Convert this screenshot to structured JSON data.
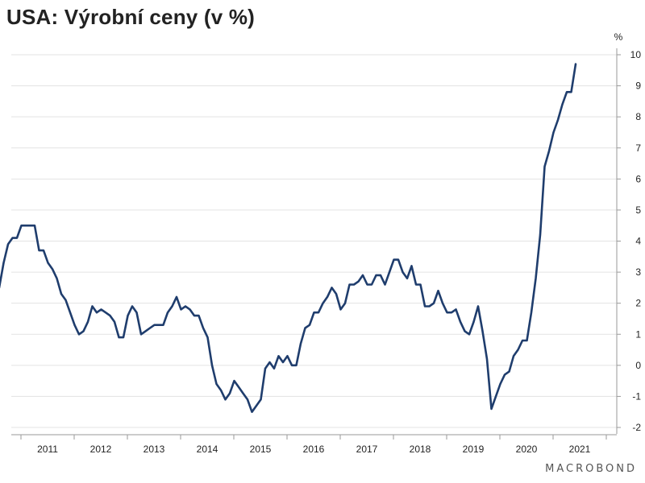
{
  "title": "USA: Výrobní ceny (v %)",
  "brand": "MACROBOND",
  "chart_data": {
    "type": "line",
    "unit": "%",
    "ylim": [
      -2,
      10
    ],
    "yticks": [
      -2,
      -1,
      0,
      1,
      2,
      3,
      4,
      5,
      6,
      7,
      8,
      9,
      10
    ],
    "xticks": [
      "2011",
      "2012",
      "2013",
      "2014",
      "2015",
      "2016",
      "2017",
      "2018",
      "2019",
      "2020",
      "2021"
    ],
    "grid": true,
    "color": "#1f3d6d",
    "series": [
      {
        "start": "2010-06",
        "values": [
          2.6,
          2.8,
          2.5,
          3.3,
          3.9,
          4.1,
          4.1,
          4.5,
          4.5,
          4.5,
          4.5,
          3.7,
          3.7,
          3.3,
          3.1,
          2.8,
          2.3,
          2.1,
          1.7,
          1.3,
          1.0,
          1.1,
          1.4,
          1.9,
          1.7,
          1.8,
          1.7,
          1.6,
          1.4,
          0.9,
          0.9,
          1.6,
          1.9,
          1.7,
          1.0,
          1.1,
          1.2,
          1.3,
          1.3,
          1.3,
          1.7,
          1.9,
          2.2,
          1.8,
          1.9,
          1.8,
          1.6,
          1.6,
          1.2,
          0.9,
          0.0,
          -0.6,
          -0.8,
          -1.1,
          -0.9,
          -0.5,
          -0.7,
          -0.9,
          -1.1,
          -1.5,
          -1.3,
          -1.1,
          -0.1,
          0.1,
          -0.1,
          0.3,
          0.1,
          0.3,
          0.0,
          0.0,
          0.7,
          1.2,
          1.3,
          1.7,
          1.7,
          2.0,
          2.2,
          2.5,
          2.3,
          1.8,
          2.0,
          2.6,
          2.6,
          2.7,
          2.9,
          2.6,
          2.6,
          2.9,
          2.9,
          2.6,
          3.0,
          3.4,
          3.4,
          3.0,
          2.8,
          3.2,
          2.6,
          2.6,
          1.9,
          1.9,
          2.0,
          2.4,
          2.0,
          1.7,
          1.7,
          1.8,
          1.4,
          1.1,
          1.0,
          1.4,
          1.9,
          1.1,
          0.2,
          -1.4,
          -1.0,
          -0.6,
          -0.3,
          -0.2,
          0.3,
          0.5,
          0.8,
          0.8,
          1.7,
          2.8,
          4.2,
          6.4,
          6.9,
          7.5,
          7.9,
          8.4,
          8.8,
          8.8,
          9.7
        ]
      }
    ]
  }
}
